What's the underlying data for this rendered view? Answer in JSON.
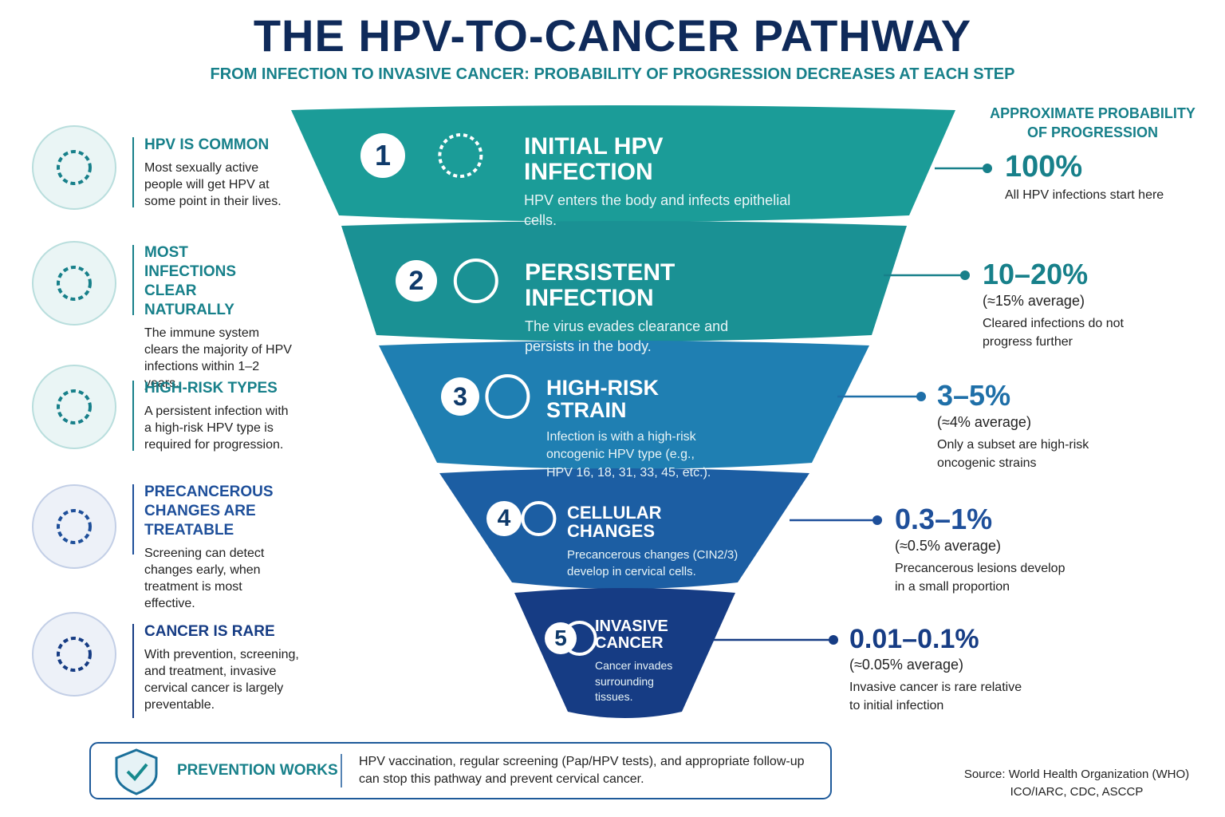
{
  "header": {
    "title": "THE HPV-TO-CANCER PATHWAY",
    "subtitle": "FROM INFECTION TO INVASIVE CANCER: PROBABILITY OF PROGRESSION DECREASES AT EACH STEP"
  },
  "left_notes": [
    {
      "heading": "HPV IS COMMON",
      "text": "Most sexually active people will get HPV at some point in their lives."
    },
    {
      "heading": "MOST INFECTIONS CLEAR NATURALLY",
      "text": "The immune system clears the majority of HPV infections within 1–2 years."
    },
    {
      "heading": "HIGH-RISK TYPES",
      "text": "A persistent infection with a high-risk HPV type is required for progression."
    },
    {
      "heading": "PRECANCEROUS CHANGES ARE TREATABLE",
      "text": "Screening can detect changes early, when treatment is most effective."
    },
    {
      "heading": "CANCER IS RARE",
      "text": "With prevention, screening, and treatment, invasive cervical cancer is largely preventable."
    }
  ],
  "stages": [
    {
      "number": 1,
      "title": "INITIAL HPV INFECTION",
      "text": "HPV enters the body and infects epithelial cells."
    },
    {
      "number": 2,
      "title": "PERSISTENT INFECTION",
      "text": "The virus evades clearance and persists in the body."
    },
    {
      "number": 3,
      "title": "HIGH-RISK STRAIN",
      "text": "Infection is with a high-risk oncogenic HPV type (e.g., HPV 16, 18, 31, 33, 45, etc.)."
    },
    {
      "number": 4,
      "title": "CELLULAR CHANGES",
      "text": "Precancerous changes (CIN2/3) develop in cervical cells."
    },
    {
      "number": 5,
      "title": "INVASIVE CANCER",
      "text": "Cancer invades surrounding tissues."
    }
  ],
  "probabilities": {
    "heading": "APPROXIMATE PROBABILITY OF PROGRESSION",
    "items": [
      {
        "value": "100%",
        "note": "All HPV infections start here"
      },
      {
        "value": "10–20%",
        "average": "(≈15% average)",
        "note": "Cleared infections do not progress further"
      },
      {
        "value": "3–5%",
        "average": "(≈4% average)",
        "note": "Only a subset are high-risk oncogenic strains"
      },
      {
        "value": "0.3–1%",
        "average": "(≈0.5% average)",
        "note": "Precancerous lesions develop in a small proportion"
      },
      {
        "value": "0.01–0.1%",
        "average": "(≈0.05% average)",
        "note": "Invasive cancer is rare relative to initial infection"
      }
    ]
  },
  "footer": {
    "prevention_title": "PREVENTION WORKS",
    "prevention_text": "HPV vaccination, regular screening (Pap/HPV tests), and appropriate follow-up can stop this pathway and prevent cervical cancer.",
    "source": "Source: World Health Organization (WHO) ICO/IARC, CDC, ASCCP"
  }
}
